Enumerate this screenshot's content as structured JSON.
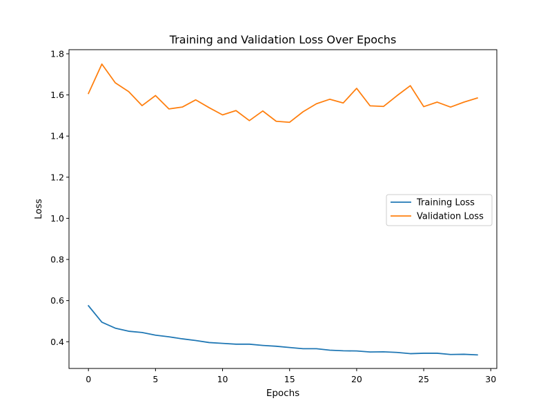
{
  "chart_data": {
    "type": "line",
    "title": "Training and Validation Loss Over Epochs",
    "xlabel": "Epochs",
    "ylabel": "Loss",
    "xlim": [
      -1.45,
      30.45
    ],
    "ylim": [
      0.27,
      1.82
    ],
    "xticks": [
      0,
      5,
      10,
      15,
      20,
      25,
      30
    ],
    "xtick_labels": [
      "0",
      "5",
      "10",
      "15",
      "20",
      "25",
      "30"
    ],
    "yticks": [
      0.4,
      0.6,
      0.8,
      1.0,
      1.2,
      1.4,
      1.6,
      1.8
    ],
    "ytick_labels": [
      "0.4",
      "0.6",
      "0.8",
      "1.0",
      "1.2",
      "1.4",
      "1.6",
      "1.8"
    ],
    "grid": false,
    "legend_position": "center-right",
    "x": [
      0,
      1,
      2,
      3,
      4,
      5,
      6,
      7,
      8,
      9,
      10,
      11,
      12,
      13,
      14,
      15,
      16,
      17,
      18,
      19,
      20,
      21,
      22,
      23,
      24,
      25,
      26,
      27,
      28,
      29
    ],
    "series": [
      {
        "name": "Training Loss",
        "color": "#1f77b4",
        "values": [
          0.575,
          0.495,
          0.466,
          0.451,
          0.445,
          0.432,
          0.424,
          0.414,
          0.406,
          0.396,
          0.392,
          0.388,
          0.388,
          0.382,
          0.378,
          0.372,
          0.366,
          0.366,
          0.359,
          0.356,
          0.355,
          0.35,
          0.351,
          0.348,
          0.342,
          0.344,
          0.344,
          0.338,
          0.339,
          0.336
        ]
      },
      {
        "name": "Validation Loss",
        "color": "#ff7f0e",
        "values": [
          1.607,
          1.75,
          1.659,
          1.616,
          1.548,
          1.597,
          1.532,
          1.541,
          1.576,
          1.538,
          1.503,
          1.524,
          1.475,
          1.522,
          1.472,
          1.467,
          1.518,
          1.557,
          1.579,
          1.561,
          1.632,
          1.547,
          1.544,
          1.596,
          1.645,
          1.543,
          1.565,
          1.541,
          1.565,
          1.585
        ]
      }
    ]
  }
}
